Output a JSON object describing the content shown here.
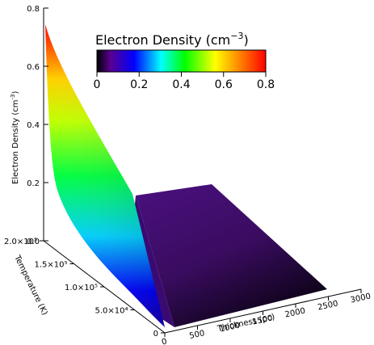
{
  "chart_data": {
    "type": "surface",
    "title": "",
    "colorbar": {
      "title": "Electron Density (cm",
      "title_exp": "−3",
      "title_end": ")",
      "ticks": [
        "0",
        "0.2",
        "0.4",
        "0.6",
        "0.8"
      ],
      "range": [
        0,
        0.8
      ],
      "colormap": "rainbow (black-purple-blue-cyan-green-yellow-red)"
    },
    "zlabel": "Electron Density (cm",
    "zlabel_exp": "-3",
    "zlabel_end": ")",
    "zticks": [
      "0.0",
      "0.2",
      "0.4",
      "0.6",
      "0.8"
    ],
    "zlim": [
      0,
      0.8
    ],
    "ylabel": "Temperature (K)",
    "yticks": [
      "0",
      "5.0×10⁴",
      "1.0×10⁵",
      "1.5×10⁵",
      "2.0×10⁵"
    ],
    "ylim": [
      0,
      200000
    ],
    "xlabel": "Thickness (pc)",
    "xticks": [
      "0",
      "500",
      "1000",
      "1500",
      "2000",
      "2500",
      "3000"
    ],
    "xlim": [
      0,
      3000
    ],
    "surface": {
      "temperature_samples": [
        0,
        5000,
        10000,
        20000,
        30000,
        45000,
        60000,
        80000,
        100000,
        125000,
        150000,
        175000,
        200000
      ],
      "thickness_start": [
        0,
        0,
        0,
        0,
        0,
        0,
        0,
        0,
        0,
        0,
        0,
        0,
        0
      ],
      "thickness_end": [
        2600,
        2580,
        2550,
        2450,
        2300,
        2050,
        1800,
        1400,
        1050,
        700,
        420,
        180,
        0
      ],
      "density_near_edge": [
        0.0,
        0.05,
        0.1,
        0.13,
        0.16,
        0.2,
        0.24,
        0.31,
        0.39,
        0.48,
        0.57,
        0.66,
        0.75
      ],
      "density_plateau": 0.07,
      "density_min": 0.0
    }
  }
}
